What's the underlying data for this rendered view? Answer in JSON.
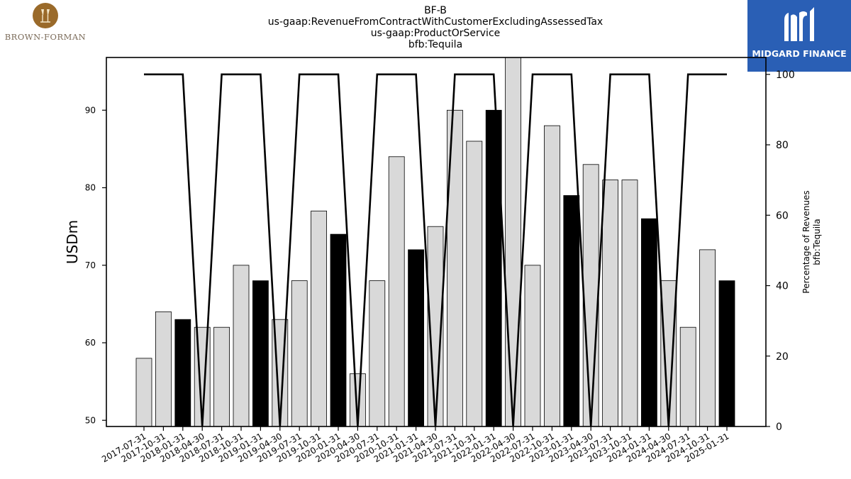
{
  "header": {
    "brand_left": "BROWN-FORMAN",
    "brand_right": "MIDGARD FINANCE",
    "title_lines": [
      "BF-B",
      "us-gaap:RevenueFromContractWithCustomerExcludingAssessedTax",
      "us-gaap:ProductOrService",
      "bfb:Tequila"
    ]
  },
  "colors": {
    "bar_default": "#d9d9d9",
    "bar_highlight": "#000000",
    "bar_edge": "#000000",
    "line": "#000000",
    "brand_right_bg": "#2a5fb5",
    "brand_left_gold": "#9a6a2a"
  },
  "chart_data": {
    "type": "bar",
    "categories": [
      "2017-07-31",
      "2017-10-31",
      "2018-01-31",
      "2018-04-30",
      "2018-07-31",
      "2018-10-31",
      "2019-01-31",
      "2019-04-30",
      "2019-07-31",
      "2019-10-31",
      "2020-01-31",
      "2020-04-30",
      "2020-07-31",
      "2020-10-31",
      "2021-01-31",
      "2021-04-30",
      "2021-07-31",
      "2021-10-31",
      "2022-01-31",
      "2022-04-30",
      "2022-07-31",
      "2022-10-31",
      "2023-01-31",
      "2023-04-30",
      "2023-07-31",
      "2023-10-31",
      "2024-01-31",
      "2024-04-30",
      "2024-07-31",
      "2024-10-31",
      "2025-01-31"
    ],
    "series": [
      {
        "axis": "left",
        "type": "bar",
        "values": [
          58,
          64,
          63,
          62,
          62,
          70,
          68,
          63,
          68,
          77,
          74,
          56,
          68,
          84,
          72,
          75,
          90,
          86,
          90,
          97,
          70,
          88,
          79,
          83,
          81,
          81,
          76,
          68,
          62,
          72,
          68
        ],
        "highlight_indices": [
          2,
          6,
          10,
          14,
          18,
          22,
          26,
          30
        ]
      },
      {
        "axis": "right",
        "type": "line",
        "values": [
          100,
          100,
          100,
          0,
          100,
          100,
          100,
          0,
          100,
          100,
          100,
          0,
          100,
          100,
          100,
          0,
          100,
          100,
          100,
          0,
          100,
          100,
          100,
          0,
          100,
          100,
          100,
          0,
          100,
          100,
          100
        ]
      }
    ],
    "ylabel": "USDm",
    "ylim": [
      49.2,
      96.8
    ],
    "yticks": [
      50,
      60,
      70,
      80,
      90
    ],
    "y2label_lines": [
      "Percentage of Revenues",
      "bfb:Tequila"
    ],
    "y2lim": [
      0,
      104.8
    ],
    "y2ticks": [
      0,
      20,
      40,
      60,
      80,
      100
    ],
    "grid": false,
    "legend": "none"
  }
}
